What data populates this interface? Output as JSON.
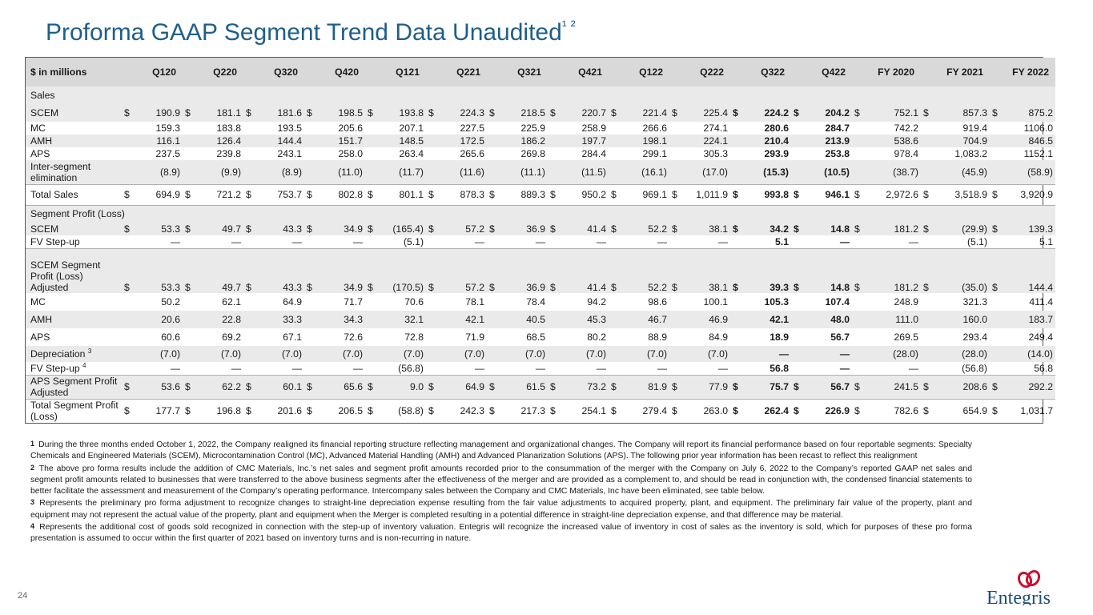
{
  "title": "Proforma GAAP Segment Trend Data Unaudited",
  "title_sup": "¹ ²",
  "page_number": "24",
  "logo_text": "Entegris",
  "colors": {
    "title": "#1f5e8a",
    "header_bg": "#d9d9d9",
    "row_shade": "#eaeaea",
    "logo_red": "#c8102e",
    "logo_blue": "#1f4e79"
  },
  "table": {
    "header_label": "$ in millions",
    "columns": [
      "Q120",
      "Q220",
      "Q320",
      "Q420",
      "Q121",
      "Q221",
      "Q321",
      "Q421",
      "Q122",
      "Q222",
      "Q322",
      "Q422",
      "FY 2020",
      "FY 2021",
      "FY 2022"
    ],
    "rows": [
      {
        "label": "Sales",
        "section": true,
        "shade": true
      },
      {
        "label": "SCEM",
        "dollar": true,
        "shade": true,
        "values": [
          "190.9",
          "181.1",
          "181.6",
          "198.5",
          "193.8",
          "224.3",
          "218.5",
          "220.7",
          "221.4",
          "225.4",
          "224.2",
          "204.2",
          "752.1",
          "857.3",
          "875.2"
        ]
      },
      {
        "label": "MC",
        "values": [
          "159.3",
          "183.8",
          "193.5",
          "205.6",
          "207.1",
          "227.5",
          "225.9",
          "258.9",
          "266.6",
          "274.1",
          "280.6",
          "284.7",
          "742.2",
          "919.4",
          "1106.0"
        ]
      },
      {
        "label": "AMH",
        "shade": true,
        "values": [
          "116.1",
          "126.4",
          "144.4",
          "151.7",
          "148.5",
          "172.5",
          "186.2",
          "197.7",
          "198.1",
          "224.1",
          "210.4",
          "213.9",
          "538.6",
          "704.9",
          "846.5"
        ]
      },
      {
        "label": "APS",
        "values": [
          "237.5",
          "239.8",
          "243.1",
          "258.0",
          "263.4",
          "265.6",
          "269.8",
          "284.4",
          "299.1",
          "305.3",
          "293.9",
          "253.8",
          "978.4",
          "1,083.2",
          "1152.1"
        ]
      },
      {
        "label": "Inter-segment elimination",
        "two": true,
        "shade": true,
        "sep": true,
        "values": [
          "(8.9)",
          "(9.9)",
          "(8.9)",
          "(11.0)",
          "(11.7)",
          "(11.6)",
          "(11.1)",
          "(11.5)",
          "(16.1)",
          "(17.0)",
          "(15.3)",
          "(10.5)",
          "(38.7)",
          "(45.9)",
          "(58.9)"
        ]
      },
      {
        "label": "Total Sales",
        "dollar": true,
        "sep": true,
        "values": [
          "694.9",
          "721.2",
          "753.7",
          "802.8",
          "801.1",
          "878.3",
          "889.3",
          "950.2",
          "969.1",
          "1,011.9",
          "993.8",
          "946.1",
          "2,972.6",
          "3,518.9",
          "3,920.9"
        ]
      },
      {
        "label": "Segment Profit (Loss)",
        "section": true,
        "shade": true
      },
      {
        "label": "SCEM",
        "dollar": true,
        "shade": true,
        "values": [
          "53.3",
          "49.7",
          "43.3",
          "34.9",
          "(165.4)",
          "57.2",
          "36.9",
          "41.4",
          "52.2",
          "38.1",
          "34.2",
          "14.8",
          "181.2",
          "(29.9)",
          "139.3"
        ]
      },
      {
        "label": "FV Step-up",
        "sep": true,
        "values": [
          "—",
          "—",
          "—",
          "—",
          "(5.1)",
          "—",
          "—",
          "—",
          "—",
          "—",
          "5.1",
          "—",
          "—",
          "(5.1)",
          "5.1"
        ]
      },
      {
        "label": "SCEM Segment Profit (Loss) Adjusted",
        "three": true,
        "dollar": true,
        "shade": true,
        "values": [
          "53.3",
          "49.7",
          "43.3",
          "34.9",
          "(170.5)",
          "57.2",
          "36.9",
          "41.4",
          "52.2",
          "38.1",
          "39.3",
          "14.8",
          "181.2",
          "(35.0)",
          "144.4"
        ]
      },
      {
        "label": "MC",
        "values": [
          "50.2",
          "62.1",
          "64.9",
          "71.7",
          "70.6",
          "78.1",
          "78.4",
          "94.2",
          "98.6",
          "100.1",
          "105.3",
          "107.4",
          "248.9",
          "321.3",
          "411.4"
        ]
      },
      {
        "label": "AMH",
        "shade": true,
        "values": [
          "20.6",
          "22.8",
          "33.3",
          "34.3",
          "32.1",
          "42.1",
          "40.5",
          "45.3",
          "46.7",
          "46.9",
          "42.1",
          "48.0",
          "111.0",
          "160.0",
          "183.7"
        ]
      },
      {
        "label": "APS",
        "values": [
          "60.6",
          "69.2",
          "67.1",
          "72.6",
          "72.8",
          "71.9",
          "68.5",
          "80.2",
          "88.9",
          "84.9",
          "18.9",
          "56.7",
          "269.5",
          "293.4",
          "249.4"
        ]
      },
      {
        "label": "Depreciation",
        "sup": "3",
        "shade": true,
        "values": [
          "(7.0)",
          "(7.0)",
          "(7.0)",
          "(7.0)",
          "(7.0)",
          "(7.0)",
          "(7.0)",
          "(7.0)",
          "(7.0)",
          "(7.0)",
          "—",
          "—",
          "(28.0)",
          "(28.0)",
          "(14.0)"
        ]
      },
      {
        "label": "FV Step-up",
        "sup": "4",
        "sep": true,
        "values": [
          "—",
          "—",
          "—",
          "—",
          "(56.8)",
          "—",
          "—",
          "—",
          "—",
          "—",
          "56.8",
          "—",
          "—",
          "(56.8)",
          "56.8"
        ]
      },
      {
        "label": "APS Segment Profit Adjusted",
        "two": true,
        "dollar": true,
        "shade": true,
        "sep": true,
        "values": [
          "53.6",
          "62.2",
          "60.1",
          "65.6",
          "9.0",
          "64.9",
          "61.5",
          "73.2",
          "81.9",
          "77.9",
          "75.7",
          "56.7",
          "241.5",
          "208.6",
          "292.2"
        ]
      },
      {
        "label": "Total Segment Profit (Loss)",
        "two": true,
        "dollar": true,
        "values": [
          "177.7",
          "196.8",
          "201.6",
          "206.5",
          "(58.8)",
          "242.3",
          "217.3",
          "254.1",
          "279.4",
          "263.0",
          "262.4",
          "226.9",
          "782.6",
          "654.9",
          "1,031.7"
        ]
      }
    ]
  },
  "footnotes": [
    {
      "mark": "1",
      "text": "During the three months ended October 1, 2022, the Company realigned its financial reporting structure reflecting management and organizational changes.  The Company will report its financial performance based on four reportable segments: Specialty Chemicals and Engineered Materials (SCEM), Microcontamination Control (MC), Advanced Material Handling (AMH) and Advanced Planarization Solutions (APS). The following prior year information has been recast to reflect this realignment"
    },
    {
      "mark": "2",
      "text": "The above pro forma results include the addition of CMC Materials, Inc.’s net sales and segment profit amounts recorded prior to the consummation of the merger with the Company on July 6, 2022 to the Company’s reported GAAP net sales and segment profit amounts related to businesses that were transferred to the above business segments after the effectiveness of the merger and are provided as a complement to, and should be read in conjunction with, the condensed financial statements to better facilitate the assessment and measurement of the Company’s operating performance. Intercompany sales between the Company and CMC Materials, Inc have been eliminated, see table below."
    },
    {
      "mark": "3",
      "text": "Represents the preliminary pro forma adjustment to recognize changes to straight-line depreciation expense resulting from the fair value adjustments to acquired property, plant, and equipment. The preliminary fair value of the property, plant and equipment may not represent the actual value of the property, plant and equipment when the Merger is completed resulting in a potential difference in straight-line depreciation expense, and that difference may be material."
    },
    {
      "mark": "4",
      "text": "Represents the additional cost of goods sold recognized in connection with the step-up of inventory valuation. Entegris will recognize the increased value of inventory in cost of sales as the inventory is sold, which for purposes of these pro forma presentation is assumed to occur within the first quarter of 2021 based on inventory turns and is non-recurring in nature."
    }
  ]
}
